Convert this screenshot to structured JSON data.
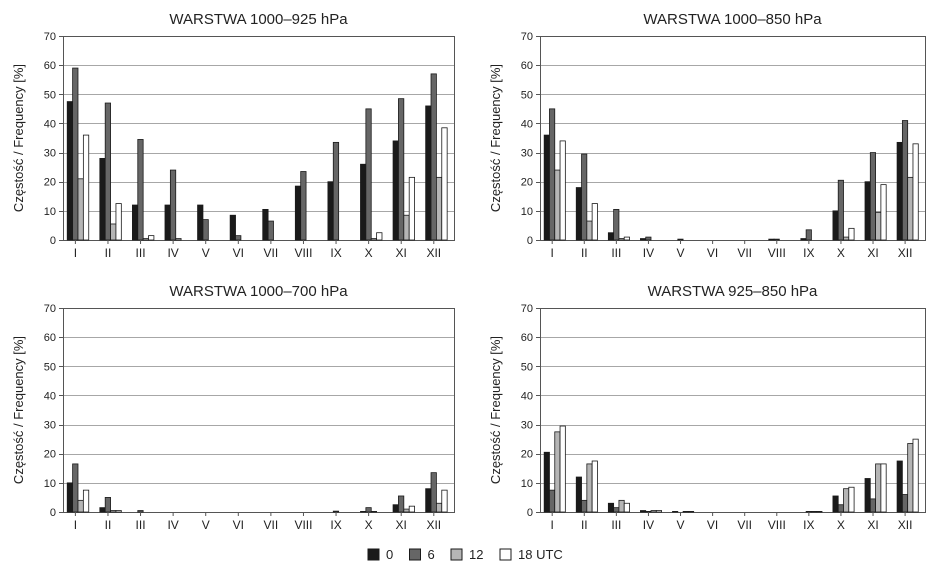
{
  "legend": {
    "placement": "bottom-center",
    "entries": [
      {
        "label": "0",
        "color": "#1a1a1a"
      },
      {
        "label": "6",
        "color": "#666666"
      },
      {
        "label": "12",
        "color": "#b5b5b5"
      },
      {
        "label": "18 UTC",
        "color": "#ffffff"
      }
    ]
  },
  "chart_data": [
    {
      "type": "bar",
      "title": "WARSTWA 1000–925 hPa",
      "ylabel": "Częstość / Frequency [%]",
      "ylim": [
        0,
        70
      ],
      "yticks": [
        0,
        10,
        20,
        30,
        40,
        50,
        60,
        70
      ],
      "grid": true,
      "categories": [
        "I",
        "II",
        "III",
        "IV",
        "V",
        "VI",
        "VII",
        "VIII",
        "IX",
        "X",
        "XI",
        "XII"
      ],
      "series": [
        {
          "name": "0",
          "values": [
            47.5,
            28,
            12,
            12,
            12,
            8.5,
            10.5,
            18.5,
            20,
            26,
            34,
            46
          ]
        },
        {
          "name": "6",
          "values": [
            59,
            47,
            34.5,
            24,
            7,
            1.5,
            6.5,
            23.5,
            33.5,
            45,
            48.5,
            57
          ]
        },
        {
          "name": "12",
          "values": [
            21,
            5.5,
            0.5,
            0.5,
            0,
            0,
            0,
            0,
            0,
            0.5,
            8.5,
            21.5
          ]
        },
        {
          "name": "18 UTC",
          "values": [
            36,
            12.5,
            1.5,
            0,
            0,
            0,
            0,
            0,
            0,
            2.5,
            21.5,
            38.5
          ]
        }
      ]
    },
    {
      "type": "bar",
      "title": "WARSTWA 1000–850 hPa",
      "ylabel": "Częstość / Frequency [%]",
      "ylim": [
        0,
        70
      ],
      "yticks": [
        0,
        10,
        20,
        30,
        40,
        50,
        60,
        70
      ],
      "grid": true,
      "categories": [
        "I",
        "II",
        "III",
        "IV",
        "V",
        "VI",
        "VII",
        "VIII",
        "IX",
        "X",
        "XI",
        "XII"
      ],
      "series": [
        {
          "name": "0",
          "values": [
            36,
            18,
            2.5,
            0.5,
            0,
            0,
            0,
            0.3,
            0.5,
            10,
            20,
            33.5
          ]
        },
        {
          "name": "6",
          "values": [
            45,
            29.5,
            10.5,
            1,
            0.3,
            0,
            0,
            0.3,
            3.5,
            20.5,
            30,
            41
          ]
        },
        {
          "name": "12",
          "values": [
            24,
            6.5,
            0.5,
            0,
            0,
            0,
            0,
            0,
            0,
            1,
            9.5,
            21.5
          ]
        },
        {
          "name": "18 UTC",
          "values": [
            34,
            12.5,
            1,
            0,
            0,
            0,
            0,
            0,
            0,
            4,
            19,
            33
          ]
        }
      ]
    },
    {
      "type": "bar",
      "title": "WARSTWA 1000–700 hPa",
      "ylabel": "Częstość / Frequency [%]",
      "ylim": [
        0,
        70
      ],
      "yticks": [
        0,
        10,
        20,
        30,
        40,
        50,
        60,
        70
      ],
      "grid": true,
      "categories": [
        "I",
        "II",
        "III",
        "IV",
        "V",
        "VI",
        "VII",
        "VIII",
        "IX",
        "X",
        "XI",
        "XII"
      ],
      "series": [
        {
          "name": "0",
          "values": [
            10,
            1.5,
            0,
            0,
            0,
            0,
            0,
            0,
            0,
            0.2,
            2.5,
            8
          ]
        },
        {
          "name": "6",
          "values": [
            16.5,
            5,
            0.5,
            0,
            0,
            0,
            0,
            0,
            0.3,
            1.5,
            5.5,
            13.5
          ]
        },
        {
          "name": "12",
          "values": [
            4,
            0.5,
            0,
            0,
            0,
            0,
            0,
            0,
            0,
            0.2,
            1,
            3
          ]
        },
        {
          "name": "18 UTC",
          "values": [
            7.5,
            0.5,
            0,
            0,
            0,
            0,
            0,
            0,
            0,
            0,
            2,
            7.5
          ]
        }
      ]
    },
    {
      "type": "bar",
      "title": "WARSTWA 925–850 hPa",
      "ylabel": "Częstość / Frequency [%]",
      "ylim": [
        0,
        70
      ],
      "yticks": [
        0,
        10,
        20,
        30,
        40,
        50,
        60,
        70
      ],
      "grid": true,
      "categories": [
        "I",
        "II",
        "III",
        "IV",
        "V",
        "VI",
        "VII",
        "VIII",
        "IX",
        "X",
        "XI",
        "XII"
      ],
      "series": [
        {
          "name": "0",
          "values": [
            20.5,
            12,
            3,
            0.5,
            0.2,
            0,
            0,
            0,
            0,
            5.5,
            11.5,
            17.5
          ]
        },
        {
          "name": "6",
          "values": [
            7.5,
            4,
            1.5,
            0.2,
            0,
            0,
            0,
            0,
            0.2,
            2.5,
            4.5,
            6
          ]
        },
        {
          "name": "12",
          "values": [
            27.5,
            16.5,
            4,
            0.5,
            0.2,
            0,
            0,
            0,
            0.2,
            8,
            16.5,
            23.5
          ]
        },
        {
          "name": "18 UTC",
          "values": [
            29.5,
            17.5,
            3,
            0.5,
            0.2,
            0,
            0,
            0,
            0.2,
            8.5,
            16.5,
            25
          ]
        }
      ]
    }
  ]
}
